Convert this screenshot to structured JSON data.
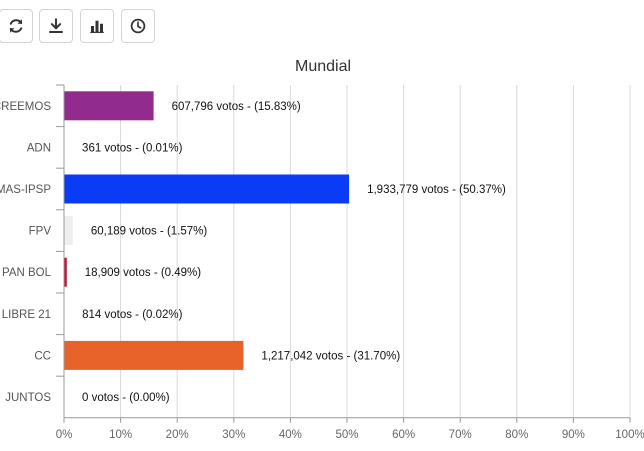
{
  "toolbar": {
    "buttons": [
      {
        "icon": "refresh-icon"
      },
      {
        "icon": "download-icon"
      },
      {
        "icon": "bar-chart-icon"
      },
      {
        "icon": "clock-icon"
      }
    ]
  },
  "chart_data": {
    "type": "bar",
    "orientation": "horizontal",
    "title": "Mundial",
    "categories": [
      "CREEMOS",
      "ADN",
      "MAS-IPSP",
      "FPV",
      "PAN BOL",
      "LIBRE 21",
      "CC",
      "JUNTOS"
    ],
    "values": [
      15.83,
      0.01,
      50.37,
      1.57,
      0.49,
      0.02,
      31.7,
      0.0
    ],
    "votes": [
      607796,
      361,
      1933779,
      60189,
      18909,
      814,
      1217042,
      0
    ],
    "data_labels": [
      "607,796 votos - (15.83%)",
      "361 votos - (0.01%)",
      "1,933,779 votos - (50.37%)",
      "60,189 votos - (1.57%)",
      "18,909 votos - (0.49%)",
      "814 votos - (0.02%)",
      "1,217,042 votos - (31.70%)",
      "0 votos - (0.00%)"
    ],
    "colors": [
      "#922b8e",
      "#ffffff",
      "#0b3cf5",
      "#eeeeee",
      "#c8102e",
      "#ffffff",
      "#e8632a",
      "#ffffff"
    ],
    "xlim": [
      0,
      100
    ],
    "xticks": [
      "0%",
      "10%",
      "20%",
      "30%",
      "40%",
      "50%",
      "60%",
      "70%",
      "80%",
      "90%",
      "100%"
    ],
    "xlabel": "",
    "ylabel": "",
    "grid": true,
    "legend": "none"
  }
}
